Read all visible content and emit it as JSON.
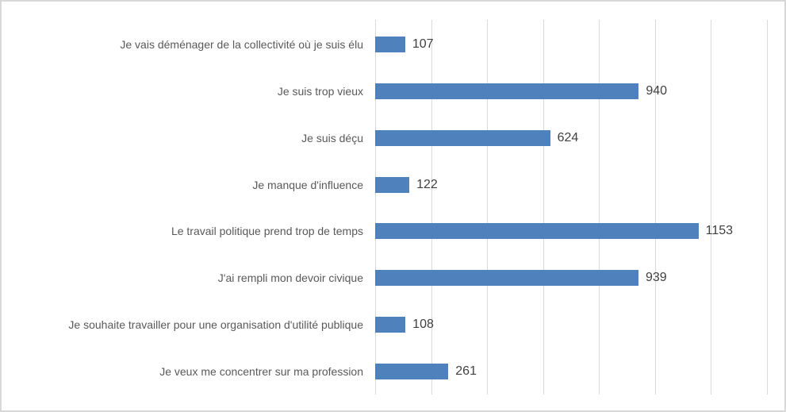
{
  "chart_data": {
    "type": "bar",
    "orientation": "horizontal",
    "title": "",
    "xlabel": "",
    "ylabel": "",
    "categories": [
      "Je vais déménager de la collectivité où je suis élu",
      "Je suis trop vieux",
      "Je suis déçu",
      "Je manque d'influence",
      "Le travail politique prend trop de temps",
      "J'ai rempli mon devoir civique",
      "Je souhaite travailler pour une organisation d'utilité publique",
      "Je veux me concentrer sur ma profession"
    ],
    "values": [
      107,
      940,
      624,
      122,
      1153,
      939,
      108,
      261
    ],
    "xlim": [
      0,
      1400
    ],
    "x_major_unit": 200,
    "gridlines": "vertical-major",
    "axis_tick_labels_visible": false,
    "data_labels": true,
    "legend": "none"
  },
  "colors": {
    "bar": "#4f81bd",
    "gridline": "#d9d9d9",
    "category_label": "#595959",
    "value_label": "#404040",
    "frame_border": "#d8d8d8",
    "background": "#ffffff"
  }
}
